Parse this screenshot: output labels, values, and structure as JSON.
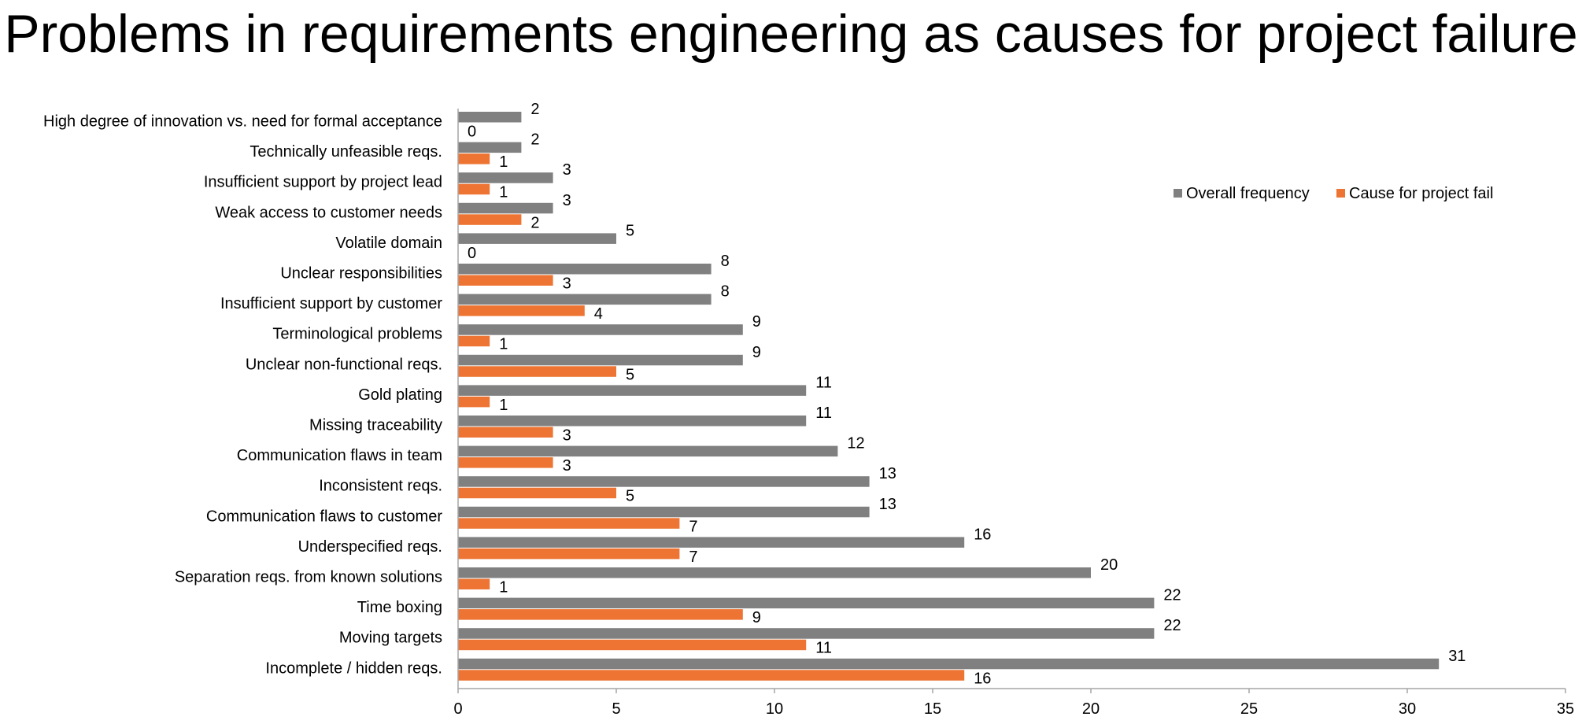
{
  "colors": {
    "overall": "#808080",
    "cause": "#ED7433",
    "axis": "#a6a6a6"
  },
  "chart_data": {
    "type": "bar",
    "orientation": "horizontal",
    "title": "Problems in requirements engineering as causes for project failure",
    "xlabel": "",
    "ylabel": "",
    "xlim": [
      0,
      35
    ],
    "xticks": [
      0,
      5,
      10,
      15,
      20,
      25,
      30,
      35
    ],
    "grid": false,
    "legend_position": "top-right",
    "categories": [
      "High degree of innovation vs. need for formal acceptance",
      "Technically unfeasible reqs.",
      "Insufficient support by project lead",
      "Weak access to customer needs",
      "Volatile domain",
      "Unclear responsibilities",
      "Insufficient support by customer",
      "Terminological problems",
      "Unclear non-functional reqs.",
      "Gold plating",
      "Missing traceability",
      "Communication flaws in team",
      "Inconsistent reqs.",
      "Communication flaws to customer",
      "Underspecified reqs.",
      "Separation reqs. from known solutions",
      "Time boxing",
      "Moving targets",
      "Incomplete / hidden reqs."
    ],
    "series": [
      {
        "name": "Overall frequency",
        "values": [
          2,
          2,
          3,
          3,
          5,
          8,
          8,
          9,
          9,
          11,
          11,
          12,
          13,
          13,
          16,
          20,
          22,
          22,
          31
        ]
      },
      {
        "name": "Cause for project fail",
        "values": [
          0,
          1,
          1,
          2,
          0,
          3,
          4,
          1,
          5,
          1,
          3,
          3,
          5,
          7,
          7,
          1,
          9,
          11,
          16
        ]
      }
    ]
  }
}
